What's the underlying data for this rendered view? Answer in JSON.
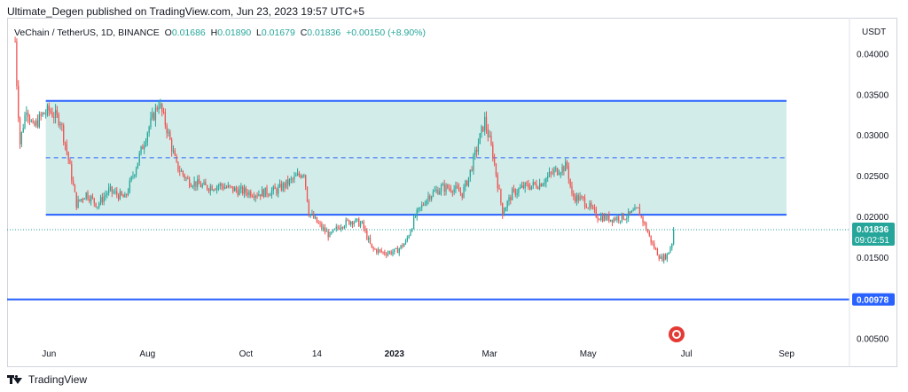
{
  "header": {
    "published_text": "Ultimate_Degen published on TradingView.com, Jun 23, 2023 19:57 UTC+5"
  },
  "legend": {
    "symbol": "VeChain / TetherUS, 1D, BINANCE",
    "o_label": "O",
    "o_value": "0.01686",
    "h_label": "H",
    "h_value": "0.01890",
    "l_label": "L",
    "l_value": "0.01679",
    "c_label": "C",
    "c_value": "0.01836",
    "change": "+0.00150 (+8.90%)"
  },
  "axis_unit": "USDT",
  "footer": {
    "brand": "TradingView"
  },
  "colors": {
    "up": "#26a69a",
    "down": "#ef5350",
    "line": "#2962ff",
    "zone_fill": "#b2dfdb",
    "price_label_bg": "#26a69a",
    "level_label_bg": "#2962ff"
  },
  "icons": [
    "tradingview-logo-icon",
    "us-flag-event-icon"
  ],
  "chart_data": {
    "type": "candlestick",
    "title": "",
    "ylim": [
      0.003,
      0.043
    ],
    "y_ticks": [
      "0.04000",
      "0.03500",
      "0.03000",
      "0.02500",
      "0.02000",
      "0.01500",
      "0.00500"
    ],
    "y_tick_values": [
      0.04,
      0.035,
      0.03,
      0.025,
      0.02,
      0.015,
      0.005
    ],
    "x_ticks": [
      "Jun",
      "Aug",
      "Oct",
      "14",
      "2023",
      "Mar",
      "May",
      "Jul",
      "Sep"
    ],
    "x_tick_dates": [
      "2022-06-01",
      "2022-08-01",
      "2022-10-01",
      "2022-11-14",
      "2023-01-01",
      "2023-03-01",
      "2023-05-01",
      "2023-07-01",
      "2023-09-01"
    ],
    "x_range": [
      "2022-05-06",
      "2023-10-10"
    ],
    "grid": false,
    "range_box": {
      "start": "2022-05-30",
      "end": "2023-09-01",
      "top": 0.0342,
      "bottom": 0.0202,
      "mid": 0.0272
    },
    "horizontal_level": {
      "value": 0.00978,
      "label": "0.00978"
    },
    "last_price": {
      "value": 0.01836,
      "label": "0.01836",
      "countdown": "09:02:51"
    },
    "price_path": [
      [
        "2022-05-11",
        0.0415
      ],
      [
        "2022-05-12",
        0.0365
      ],
      [
        "2022-05-14",
        0.029
      ],
      [
        "2022-05-18",
        0.0335
      ],
      [
        "2022-05-22",
        0.0308
      ],
      [
        "2022-05-28",
        0.0325
      ],
      [
        "2022-06-01",
        0.033
      ],
      [
        "2022-06-08",
        0.0318
      ],
      [
        "2022-06-13",
        0.027
      ],
      [
        "2022-06-18",
        0.0215
      ],
      [
        "2022-06-24",
        0.0228
      ],
      [
        "2022-07-01",
        0.0214
      ],
      [
        "2022-07-08",
        0.0232
      ],
      [
        "2022-07-18",
        0.0222
      ],
      [
        "2022-07-25",
        0.0262
      ],
      [
        "2022-08-01",
        0.0305
      ],
      [
        "2022-08-08",
        0.034
      ],
      [
        "2022-08-13",
        0.0308
      ],
      [
        "2022-08-19",
        0.0262
      ],
      [
        "2022-08-26",
        0.0244
      ],
      [
        "2022-09-06",
        0.0236
      ],
      [
        "2022-09-15",
        0.0238
      ],
      [
        "2022-09-25",
        0.0232
      ],
      [
        "2022-10-08",
        0.0228
      ],
      [
        "2022-10-20",
        0.0232
      ],
      [
        "2022-10-30",
        0.0245
      ],
      [
        "2022-11-06",
        0.0255
      ],
      [
        "2022-11-09",
        0.0205
      ],
      [
        "2022-11-15",
        0.019
      ],
      [
        "2022-11-22",
        0.0176
      ],
      [
        "2022-11-29",
        0.019
      ],
      [
        "2022-12-06",
        0.0195
      ],
      [
        "2022-12-12",
        0.019
      ],
      [
        "2022-12-18",
        0.016
      ],
      [
        "2022-12-26",
        0.0155
      ],
      [
        "2023-01-02",
        0.0157
      ],
      [
        "2023-01-08",
        0.0168
      ],
      [
        "2023-01-14",
        0.02
      ],
      [
        "2023-01-22",
        0.0225
      ],
      [
        "2023-01-30",
        0.0235
      ],
      [
        "2023-02-06",
        0.0235
      ],
      [
        "2023-02-12",
        0.0228
      ],
      [
        "2023-02-16",
        0.0248
      ],
      [
        "2023-02-22",
        0.029
      ],
      [
        "2023-02-26",
        0.0318
      ],
      [
        "2023-03-03",
        0.0276
      ],
      [
        "2023-03-09",
        0.0205
      ],
      [
        "2023-03-15",
        0.0228
      ],
      [
        "2023-03-22",
        0.0236
      ],
      [
        "2023-04-01",
        0.024
      ],
      [
        "2023-04-10",
        0.0255
      ],
      [
        "2023-04-18",
        0.0262
      ],
      [
        "2023-04-21",
        0.0225
      ],
      [
        "2023-04-28",
        0.022
      ],
      [
        "2023-05-07",
        0.02
      ],
      [
        "2023-05-15",
        0.0197
      ],
      [
        "2023-05-25",
        0.02
      ],
      [
        "2023-06-01",
        0.0208
      ],
      [
        "2023-06-05",
        0.019
      ],
      [
        "2023-06-10",
        0.0165
      ],
      [
        "2023-06-15",
        0.0148
      ],
      [
        "2023-06-19",
        0.0152
      ],
      [
        "2023-06-22",
        0.0168
      ],
      [
        "2023-06-23",
        0.01836
      ]
    ]
  }
}
